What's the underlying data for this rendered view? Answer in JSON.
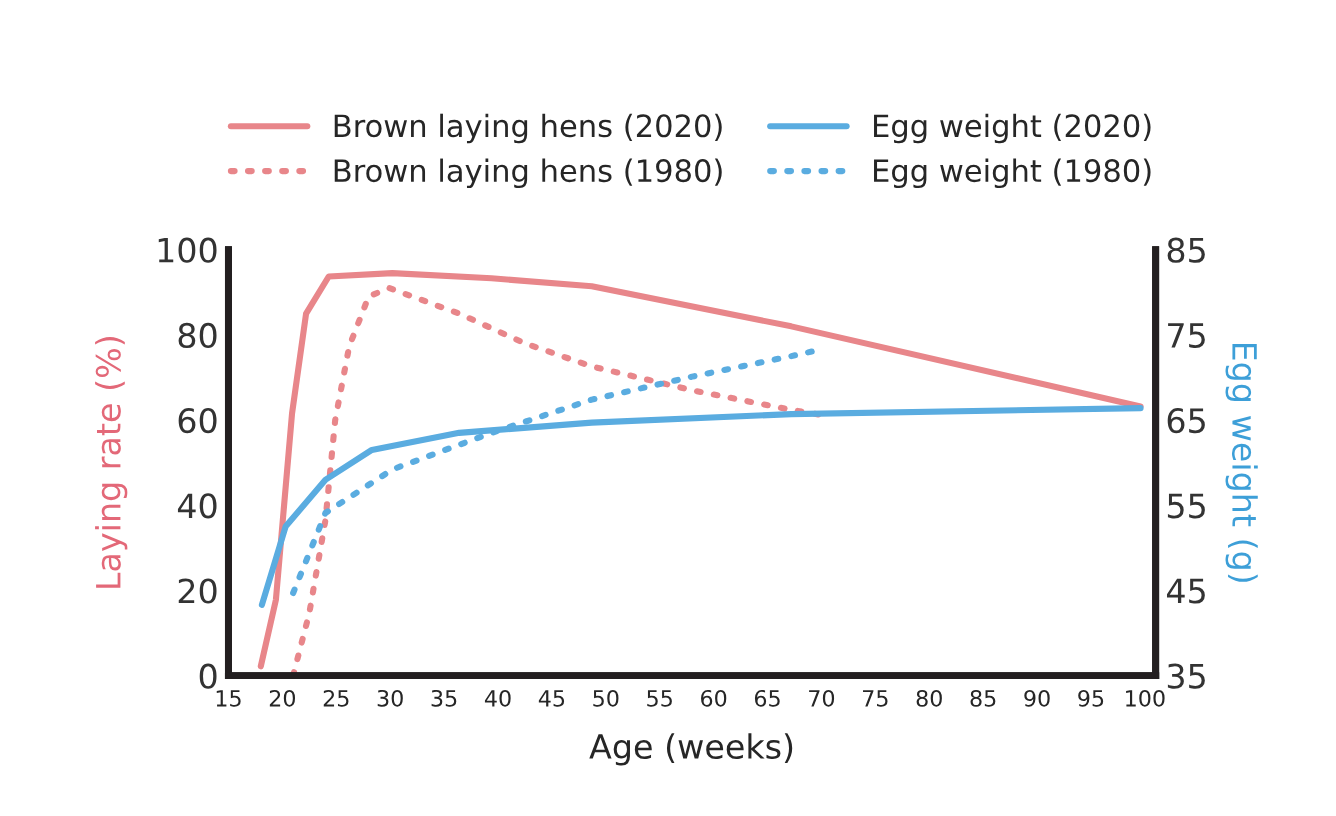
{
  "chart_data": {
    "type": "line",
    "xlabel": "Age (weeks)",
    "ylabel": "Laying rate (%)",
    "y2label": "Egg weight (g)",
    "xlim": [
      15,
      101
    ],
    "xticks": [
      15,
      20,
      25,
      30,
      35,
      40,
      45,
      50,
      55,
      60,
      65,
      70,
      75,
      80,
      85,
      90,
      95,
      100
    ],
    "ylim": [
      0,
      100
    ],
    "yticks": [
      0,
      20,
      40,
      60,
      80,
      100
    ],
    "y2lim": [
      35,
      85
    ],
    "y2ticks": [
      35,
      45,
      55,
      65,
      75,
      85
    ],
    "legend": "top",
    "grid": false,
    "series": [
      {
        "name": "Brown laying hens (2020)",
        "color": "#e8868a",
        "line_style": "solid",
        "x": [
          18.0,
          19.4,
          20.9,
          22.2,
          24.3,
          30.2,
          39.4,
          48.7,
          67.2,
          99.6
        ],
        "values": [
          2.2,
          17.8,
          61.6,
          85,
          93.7,
          94.5,
          93.3,
          91.4,
          82,
          63.2
        ]
      },
      {
        "name": "Brown laying hens (1980)",
        "color": "#e8868a",
        "line_style": "dotted",
        "x": [
          21.0,
          22.5,
          24.0,
          24.9,
          26.2,
          28.0,
          29.9,
          36.4,
          42.5,
          48.7,
          58,
          67.2,
          70
        ],
        "values": [
          0,
          14.7,
          36.6,
          60,
          77.3,
          89,
          91,
          85,
          78,
          72.6,
          67,
          62.4,
          61.2
        ]
      },
      {
        "name": "Egg weight (2020)",
        "color": "#5aace0",
        "line_style": "solid",
        "axis": "y2",
        "x": [
          18.1,
          20.3,
          24.0,
          28.3,
          36.4,
          48.7,
          67.2,
          99.6
        ],
        "values": [
          43.3,
          52.5,
          58,
          61.5,
          63.5,
          64.7,
          65.7,
          66.4
        ]
      },
      {
        "name": "Egg weight (1980)",
        "color": "#5aace0",
        "line_style": "dotted",
        "axis": "y2",
        "x": [
          21.0,
          24.0,
          30.2,
          39.4,
          48.7,
          58,
          67.2,
          70
        ],
        "values": [
          44.7,
          54.1,
          59.2,
          63.5,
          67.4,
          70.1,
          72.5,
          73.3
        ]
      }
    ]
  }
}
